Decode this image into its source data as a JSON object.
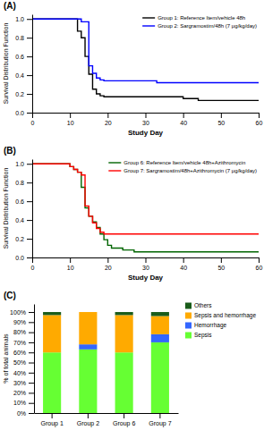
{
  "chart_data": [
    {
      "type": "line",
      "title": "(A)",
      "xlabel": "Study Day",
      "ylabel": "Survival Distribution Function",
      "series": [
        {
          "name": "Group 1: Reference Item/vehicle 48h",
          "color": "black",
          "x": [
            0,
            12,
            12,
            13,
            13,
            14,
            14,
            15,
            15,
            16,
            16,
            17,
            17,
            18,
            18,
            19,
            19,
            20,
            20,
            40,
            40,
            44,
            44,
            60
          ],
          "values": [
            1.0,
            1.0,
            0.87,
            0.87,
            0.8,
            0.8,
            0.6,
            0.6,
            0.41,
            0.41,
            0.25,
            0.25,
            0.2,
            0.2,
            0.18,
            0.18,
            0.17,
            0.17,
            0.17,
            0.17,
            0.15,
            0.15,
            0.13,
            0.13
          ]
        },
        {
          "name": "Group 2: Sargramostim/48h (7 μg/kg/day)",
          "color": "#0000ff",
          "x": [
            0,
            13,
            13,
            15,
            15,
            16,
            16,
            17,
            17,
            18,
            18,
            19,
            19,
            20,
            20,
            33,
            33,
            60
          ],
          "values": [
            1.0,
            1.0,
            0.97,
            0.97,
            0.5,
            0.5,
            0.42,
            0.42,
            0.37,
            0.37,
            0.35,
            0.35,
            0.34,
            0.34,
            0.34,
            0.34,
            0.32,
            0.32
          ]
        }
      ],
      "xlim": [
        0,
        60
      ],
      "ylim": [
        0,
        1.05
      ],
      "xticks": [
        0,
        10,
        20,
        30,
        40,
        50,
        60
      ],
      "yticks": [
        {
          "value": 0,
          "label": "0.0"
        },
        0.2,
        0.4,
        0.6,
        0.8,
        {
          "value": 1.0,
          "label": "1.0"
        }
      ],
      "legend": "upper right",
      "grid": false
    },
    {
      "type": "line",
      "title": "(B)",
      "xlabel": "Study Day",
      "ylabel": "Survival Distribution Function",
      "series": [
        {
          "name": "Group 6: Reference Item/vehicle 48h+Azithromycin",
          "color": "#006400",
          "x": [
            0,
            10,
            10,
            11,
            11,
            12,
            12,
            13,
            13,
            14,
            14,
            15,
            15,
            16,
            16,
            17,
            17,
            18,
            18,
            19,
            19,
            20,
            20,
            21,
            21,
            22,
            22,
            24,
            24,
            25,
            25,
            27,
            27,
            30,
            30,
            60
          ],
          "values": [
            1.0,
            1.0,
            0.97,
            0.97,
            0.94,
            0.94,
            0.91,
            0.91,
            0.75,
            0.75,
            0.53,
            0.53,
            0.44,
            0.44,
            0.38,
            0.38,
            0.32,
            0.32,
            0.25,
            0.25,
            0.19,
            0.19,
            0.13,
            0.13,
            0.1,
            0.1,
            0.1,
            0.1,
            0.08,
            0.08,
            0.08,
            0.08,
            0.06,
            0.06,
            0.06,
            0.06
          ]
        },
        {
          "name": "Group 7: Sargramostim/48h+Azithromycin (7 μg/kg/day)",
          "color": "#ff0000",
          "x": [
            0,
            10,
            10,
            11,
            11,
            12,
            12,
            13,
            13,
            14,
            14,
            15,
            15,
            16,
            16,
            17,
            17,
            18,
            18,
            19,
            19,
            20,
            20,
            60
          ],
          "values": [
            1.0,
            1.0,
            0.97,
            0.97,
            0.94,
            0.94,
            0.91,
            0.91,
            0.88,
            0.88,
            0.55,
            0.55,
            0.44,
            0.44,
            0.37,
            0.37,
            0.31,
            0.31,
            0.27,
            0.27,
            0.25,
            0.25,
            0.25,
            0.25
          ]
        }
      ],
      "xlim": [
        0,
        60
      ],
      "ylim": [
        0,
        1.05
      ],
      "xticks": [
        0,
        10,
        20,
        30,
        40,
        50,
        60
      ],
      "yticks": [
        {
          "value": 0,
          "label": "0.0"
        },
        0.2,
        0.4,
        0.6,
        0.8,
        {
          "value": 1.0,
          "label": "1.0"
        }
      ],
      "legend": "upper right",
      "grid": false
    },
    {
      "type": "bar",
      "title": "(C)",
      "ylabel": "% of total animals",
      "stacked": true,
      "categories": [
        "Group 1",
        "Group 2",
        "Group 6",
        "Group 7"
      ],
      "series": [
        {
          "name": "Sepsis",
          "color": "#66ff33",
          "values": [
            60,
            63,
            60,
            70
          ]
        },
        {
          "name": "Hemorrhage",
          "color": "#3366ff",
          "values": [
            0,
            5,
            0,
            8
          ]
        },
        {
          "name": "Sepsis and hemorrhage",
          "color": "#ffaa00",
          "values": [
            37,
            32,
            37,
            18
          ]
        },
        {
          "name": "Others",
          "color": "#1a5c1a",
          "values": [
            3,
            0,
            3,
            4
          ]
        }
      ],
      "ylim": [
        0,
        108
      ],
      "yticks": [
        {
          "value": 0,
          "label": "0%"
        },
        {
          "value": 10,
          "label": "10%"
        },
        {
          "value": 20,
          "label": "20%"
        },
        {
          "value": 30,
          "label": "30%"
        },
        {
          "value": 40,
          "label": "40%"
        },
        {
          "value": 50,
          "label": "50%"
        },
        {
          "value": 60,
          "label": "60%"
        },
        {
          "value": 70,
          "label": "70%"
        },
        {
          "value": 80,
          "label": "80%"
        },
        {
          "value": 90,
          "label": "90%"
        },
        {
          "value": 100,
          "label": "100%"
        }
      ],
      "legend": "right",
      "grid": false
    }
  ]
}
